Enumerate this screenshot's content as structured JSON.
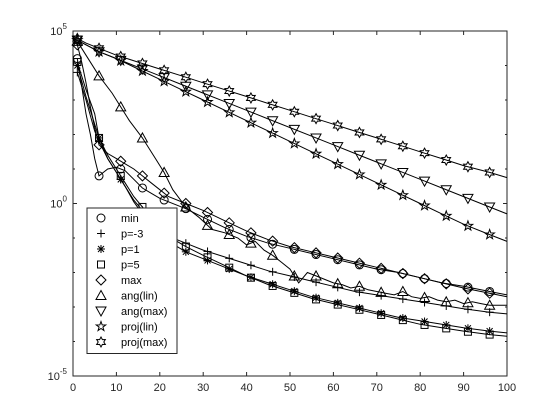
{
  "chart_data": {
    "type": "line",
    "title": "",
    "xlabel": "",
    "ylabel": "",
    "xlim": [
      0,
      100
    ],
    "ylim_log10": [
      -5,
      5
    ],
    "y_scale": "log",
    "grid": false,
    "legend_position": "bottom-left",
    "x_ticks": [
      0,
      10,
      20,
      30,
      40,
      50,
      60,
      70,
      80,
      90,
      100
    ],
    "x_tick_labels": [
      "0",
      "10",
      "20",
      "30",
      "40",
      "50",
      "60",
      "70",
      "80",
      "90",
      "100"
    ],
    "y_ticks_log10": [
      -5,
      0,
      5
    ],
    "y_tick_labels": [
      {
        "base": "10",
        "exp": "-5"
      },
      {
        "base": "10",
        "exp": "0"
      },
      {
        "base": "10",
        "exp": "5"
      }
    ],
    "series": [
      {
        "name": "min",
        "marker": "circle",
        "mark_every": 5,
        "points": [
          [
            1,
            4.2
          ],
          [
            2,
            3.4
          ],
          [
            3,
            2.6
          ],
          [
            4,
            2.0
          ],
          [
            5,
            1.3
          ],
          [
            6,
            0.8
          ],
          [
            7,
            0.9
          ],
          [
            8,
            1.0
          ],
          [
            10,
            1.05
          ],
          [
            12,
            0.95
          ],
          [
            14,
            0.7
          ],
          [
            16,
            0.45
          ],
          [
            18,
            0.3
          ],
          [
            20,
            0.15
          ],
          [
            22,
            0.05
          ],
          [
            26,
            -0.15
          ],
          [
            30,
            -0.4
          ],
          [
            35,
            -0.7
          ],
          [
            40,
            -0.95
          ],
          [
            45,
            -1.15
          ],
          [
            50,
            -1.3
          ],
          [
            55,
            -1.45
          ],
          [
            60,
            -1.6
          ],
          [
            65,
            -1.75
          ],
          [
            70,
            -1.9
          ],
          [
            75,
            -2.0
          ],
          [
            80,
            -2.15
          ],
          [
            85,
            -2.3
          ],
          [
            90,
            -2.4
          ],
          [
            96,
            -2.55
          ],
          [
            100,
            -2.65
          ]
        ]
      },
      {
        "name": "p=-3",
        "marker": "plus",
        "mark_every": 5,
        "points": [
          [
            1,
            3.8
          ],
          [
            3,
            3.0
          ],
          [
            5,
            2.1
          ],
          [
            6,
            1.8
          ],
          [
            8,
            1.3
          ],
          [
            10,
            0.9
          ],
          [
            12,
            0.5
          ],
          [
            14,
            0.1
          ],
          [
            16,
            -0.2
          ],
          [
            18,
            -0.5
          ],
          [
            20,
            -0.75
          ],
          [
            22,
            -0.95
          ],
          [
            26,
            -1.15
          ],
          [
            30,
            -1.35
          ],
          [
            35,
            -1.55
          ],
          [
            40,
            -1.75
          ],
          [
            45,
            -1.95
          ],
          [
            50,
            -2.1
          ],
          [
            55,
            -2.25
          ],
          [
            60,
            -2.4
          ],
          [
            65,
            -2.55
          ],
          [
            70,
            -2.65
          ],
          [
            75,
            -2.75
          ],
          [
            80,
            -2.85
          ],
          [
            85,
            -2.95
          ],
          [
            90,
            -3.05
          ],
          [
            96,
            -3.15
          ],
          [
            100,
            -3.2
          ]
        ]
      },
      {
        "name": "p=1",
        "marker": "asterisk",
        "mark_every": 5,
        "points": [
          [
            1,
            4.0
          ],
          [
            3,
            3.1
          ],
          [
            5,
            2.3
          ],
          [
            6,
            1.9
          ],
          [
            8,
            1.3
          ],
          [
            10,
            0.9
          ],
          [
            12,
            0.5
          ],
          [
            14,
            0.05
          ],
          [
            16,
            -0.3
          ],
          [
            18,
            -0.6
          ],
          [
            20,
            -0.9
          ],
          [
            22,
            -1.1
          ],
          [
            26,
            -1.4
          ],
          [
            30,
            -1.6
          ],
          [
            35,
            -1.85
          ],
          [
            40,
            -2.1
          ],
          [
            45,
            -2.3
          ],
          [
            50,
            -2.5
          ],
          [
            55,
            -2.7
          ],
          [
            60,
            -2.85
          ],
          [
            65,
            -3.0
          ],
          [
            70,
            -3.15
          ],
          [
            75,
            -3.3
          ],
          [
            80,
            -3.4
          ],
          [
            85,
            -3.5
          ],
          [
            90,
            -3.6
          ],
          [
            96,
            -3.7
          ],
          [
            100,
            -3.75
          ]
        ]
      },
      {
        "name": "p=5",
        "marker": "square",
        "mark_every": 5,
        "points": [
          [
            1,
            4.1
          ],
          [
            3,
            3.3
          ],
          [
            5,
            2.6
          ],
          [
            6,
            1.9
          ],
          [
            8,
            1.4
          ],
          [
            10,
            1.0
          ],
          [
            12,
            0.6
          ],
          [
            14,
            0.2
          ],
          [
            16,
            -0.1
          ],
          [
            18,
            -0.4
          ],
          [
            20,
            -0.7
          ],
          [
            22,
            -0.95
          ],
          [
            26,
            -1.25
          ],
          [
            30,
            -1.5
          ],
          [
            35,
            -1.8
          ],
          [
            40,
            -2.1
          ],
          [
            45,
            -2.35
          ],
          [
            50,
            -2.55
          ],
          [
            55,
            -2.75
          ],
          [
            60,
            -2.9
          ],
          [
            65,
            -3.05
          ],
          [
            70,
            -3.2
          ],
          [
            75,
            -3.35
          ],
          [
            80,
            -3.5
          ],
          [
            85,
            -3.6
          ],
          [
            90,
            -3.7
          ],
          [
            96,
            -3.8
          ],
          [
            100,
            -3.85
          ]
        ]
      },
      {
        "name": "max",
        "marker": "diamond",
        "mark_every": 5,
        "points": [
          [
            1,
            4.6
          ],
          [
            2,
            4.1
          ],
          [
            3,
            3.5
          ],
          [
            4,
            2.8
          ],
          [
            5,
            2.2
          ],
          [
            6,
            1.7
          ],
          [
            8,
            1.45
          ],
          [
            10,
            1.3
          ],
          [
            12,
            1.15
          ],
          [
            14,
            1.0
          ],
          [
            16,
            0.8
          ],
          [
            18,
            0.6
          ],
          [
            20,
            0.4
          ],
          [
            22,
            0.2
          ],
          [
            26,
            0.0
          ],
          [
            30,
            -0.2
          ],
          [
            35,
            -0.5
          ],
          [
            40,
            -0.8
          ],
          [
            45,
            -1.05
          ],
          [
            50,
            -1.25
          ],
          [
            55,
            -1.4
          ],
          [
            60,
            -1.55
          ],
          [
            65,
            -1.7
          ],
          [
            70,
            -1.85
          ],
          [
            75,
            -2.0
          ],
          [
            80,
            -2.15
          ],
          [
            85,
            -2.3
          ],
          [
            90,
            -2.45
          ],
          [
            96,
            -2.6
          ],
          [
            100,
            -2.7
          ]
        ]
      },
      {
        "name": "ang(lin)",
        "marker": "triangle-up",
        "mark_every": 5,
        "points": [
          [
            1,
            4.7
          ],
          [
            3,
            4.3
          ],
          [
            6,
            3.7
          ],
          [
            9,
            3.2
          ],
          [
            11,
            2.8
          ],
          [
            13,
            2.4
          ],
          [
            16,
            1.9
          ],
          [
            19,
            1.3
          ],
          [
            21,
            0.9
          ],
          [
            23,
            0.4
          ],
          [
            26,
            -0.1
          ],
          [
            29,
            -0.4
          ],
          [
            32,
            -0.75
          ],
          [
            35,
            -0.85
          ],
          [
            38,
            -1.0
          ],
          [
            40,
            -1.2
          ],
          [
            42,
            -1.1
          ],
          [
            44,
            -1.35
          ],
          [
            46,
            -1.5
          ],
          [
            48,
            -1.7
          ],
          [
            50,
            -1.9
          ],
          [
            52,
            -2.3
          ],
          [
            54,
            -2.0
          ],
          [
            56,
            -2.1
          ],
          [
            58,
            -2.2
          ],
          [
            60,
            -2.3
          ],
          [
            62,
            -2.35
          ],
          [
            64,
            -2.45
          ],
          [
            66,
            -2.4
          ],
          [
            68,
            -2.5
          ],
          [
            70,
            -2.55
          ],
          [
            72,
            -2.6
          ],
          [
            74,
            -2.65
          ],
          [
            76,
            -2.55
          ],
          [
            78,
            -2.7
          ],
          [
            80,
            -2.75
          ],
          [
            82,
            -2.7
          ],
          [
            84,
            -2.8
          ],
          [
            86,
            -2.85
          ],
          [
            88,
            -2.8
          ],
          [
            90,
            -2.9
          ],
          [
            92,
            -2.85
          ],
          [
            94,
            -2.9
          ],
          [
            96,
            -2.95
          ],
          [
            98,
            -2.95
          ],
          [
            100,
            -2.95
          ]
        ]
      },
      {
        "name": "ang(max)",
        "marker": "triangle-down",
        "mark_every": 5,
        "points": [
          [
            0,
            4.8
          ],
          [
            3,
            4.6
          ],
          [
            6,
            4.4
          ],
          [
            10,
            4.2
          ],
          [
            15,
            3.95
          ],
          [
            20,
            3.7
          ],
          [
            25,
            3.45
          ],
          [
            30,
            3.2
          ],
          [
            35,
            2.95
          ],
          [
            40,
            2.7
          ],
          [
            45,
            2.45
          ],
          [
            50,
            2.2
          ],
          [
            55,
            1.95
          ],
          [
            60,
            1.7
          ],
          [
            65,
            1.45
          ],
          [
            70,
            1.2
          ],
          [
            75,
            0.95
          ],
          [
            80,
            0.7
          ],
          [
            85,
            0.45
          ],
          [
            90,
            0.2
          ],
          [
            96,
            -0.1
          ],
          [
            100,
            -0.3
          ]
        ]
      },
      {
        "name": "proj(lin)",
        "marker": "pentagram",
        "mark_every": 5,
        "points": [
          [
            0,
            4.8
          ],
          [
            3,
            4.6
          ],
          [
            6,
            4.4
          ],
          [
            10,
            4.2
          ],
          [
            15,
            3.9
          ],
          [
            20,
            3.6
          ],
          [
            25,
            3.3
          ],
          [
            30,
            3.0
          ],
          [
            35,
            2.7
          ],
          [
            40,
            2.4
          ],
          [
            45,
            2.1
          ],
          [
            50,
            1.8
          ],
          [
            55,
            1.5
          ],
          [
            60,
            1.2
          ],
          [
            65,
            0.9
          ],
          [
            70,
            0.6
          ],
          [
            75,
            0.3
          ],
          [
            80,
            0.0
          ],
          [
            85,
            -0.3
          ],
          [
            90,
            -0.6
          ],
          [
            96,
            -0.9
          ],
          [
            100,
            -1.1
          ]
        ]
      },
      {
        "name": "proj(max)",
        "marker": "hexagram",
        "mark_every": 5,
        "points": [
          [
            0,
            4.85
          ],
          [
            3,
            4.65
          ],
          [
            6,
            4.5
          ],
          [
            10,
            4.3
          ],
          [
            15,
            4.1
          ],
          [
            20,
            3.9
          ],
          [
            25,
            3.7
          ],
          [
            30,
            3.5
          ],
          [
            35,
            3.3
          ],
          [
            40,
            3.1
          ],
          [
            45,
            2.9
          ],
          [
            50,
            2.7
          ],
          [
            55,
            2.5
          ],
          [
            60,
            2.3
          ],
          [
            65,
            2.1
          ],
          [
            70,
            1.9
          ],
          [
            75,
            1.7
          ],
          [
            80,
            1.5
          ],
          [
            85,
            1.3
          ],
          [
            90,
            1.1
          ],
          [
            96,
            0.9
          ],
          [
            100,
            0.75
          ]
        ]
      }
    ]
  }
}
